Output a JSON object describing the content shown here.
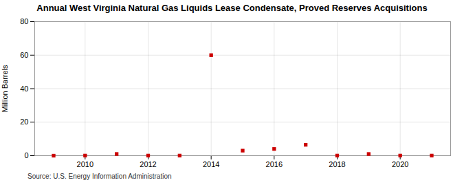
{
  "chart_data": {
    "type": "scatter",
    "title": "Annual West Virginia Natural Gas Liquids Lease Condensate, Proved Reserves Acquisitions",
    "ylabel": "Million Barrels",
    "source": "Source: U.S. Energy Information Administration",
    "x": [
      2009,
      2010,
      2011,
      2012,
      2013,
      2014,
      2015,
      2016,
      2017,
      2018,
      2019,
      2020,
      2021
    ],
    "values": [
      0.0,
      0.05,
      1.0,
      0.05,
      0.05,
      60.0,
      3.0,
      4.0,
      6.5,
      0.05,
      1.0,
      0.05,
      0.05
    ],
    "color": "#cc0000",
    "marker": "square",
    "xlim": [
      2008.4,
      2021.6
    ],
    "xticks": [
      2010,
      2012,
      2014,
      2016,
      2018,
      2020
    ],
    "ylim": [
      0,
      80
    ],
    "yticks": [
      0,
      20,
      40,
      60,
      80
    ],
    "grid": true
  }
}
